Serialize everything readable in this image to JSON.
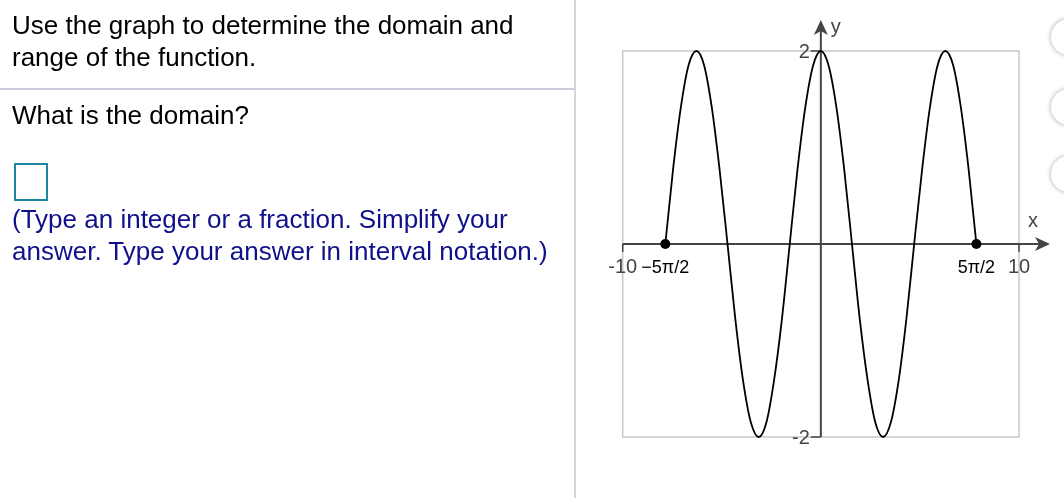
{
  "chart_data": {
    "type": "line",
    "title": "Use the graph to determine the domain and range of the function.",
    "annotations": [
      "What is the domain?",
      "(Type an integer or a fraction. Simplify your answer. Type your answer in interval notation.)"
    ],
    "xlabel": "x",
    "ylabel": "y",
    "xlim": [
      -10,
      10
    ],
    "ylim": [
      -2,
      2
    ],
    "xticks": [
      -10,
      {
        "value": -7.85,
        "label": "−5π/2"
      },
      {
        "value": 7.85,
        "label": "5π/2"
      },
      10
    ],
    "yticks": [
      -2,
      2
    ],
    "series": [
      {
        "color": "#000000",
        "x": [
          -7.85,
          -7.46,
          -7.07,
          -6.68,
          -6.28,
          -5.89,
          -5.5,
          -5.11,
          -4.71,
          -4.32,
          -3.93,
          -3.53,
          -3.14,
          -2.75,
          -2.36,
          -1.96,
          -1.57,
          -1.18,
          -0.79,
          -0.39,
          0,
          0.39,
          0.79,
          1.18,
          1.57,
          1.96,
          2.36,
          2.75,
          3.14,
          3.53,
          3.93,
          4.32,
          4.71,
          5.11,
          5.5,
          5.89,
          6.28,
          6.68,
          7.07,
          7.46,
          7.85
        ],
        "values": [
          0,
          0.77,
          1.41,
          1.85,
          2,
          1.85,
          1.41,
          0.77,
          0,
          -0.77,
          -1.41,
          -1.85,
          -2,
          -1.85,
          -1.41,
          -0.77,
          0,
          0.77,
          1.41,
          1.85,
          2,
          1.85,
          1.41,
          0.77,
          0,
          -0.77,
          -1.41,
          -1.85,
          -2,
          -1.85,
          -1.41,
          -0.77,
          0,
          0.77,
          1.41,
          1.85,
          2,
          1.85,
          1.41,
          0.77,
          0
        ]
      },
      {
        "type": "scatter",
        "color": "#000000",
        "marker": "circle",
        "x": [
          -7.85,
          7.85
        ],
        "values": [
          0,
          0
        ]
      }
    ]
  }
}
